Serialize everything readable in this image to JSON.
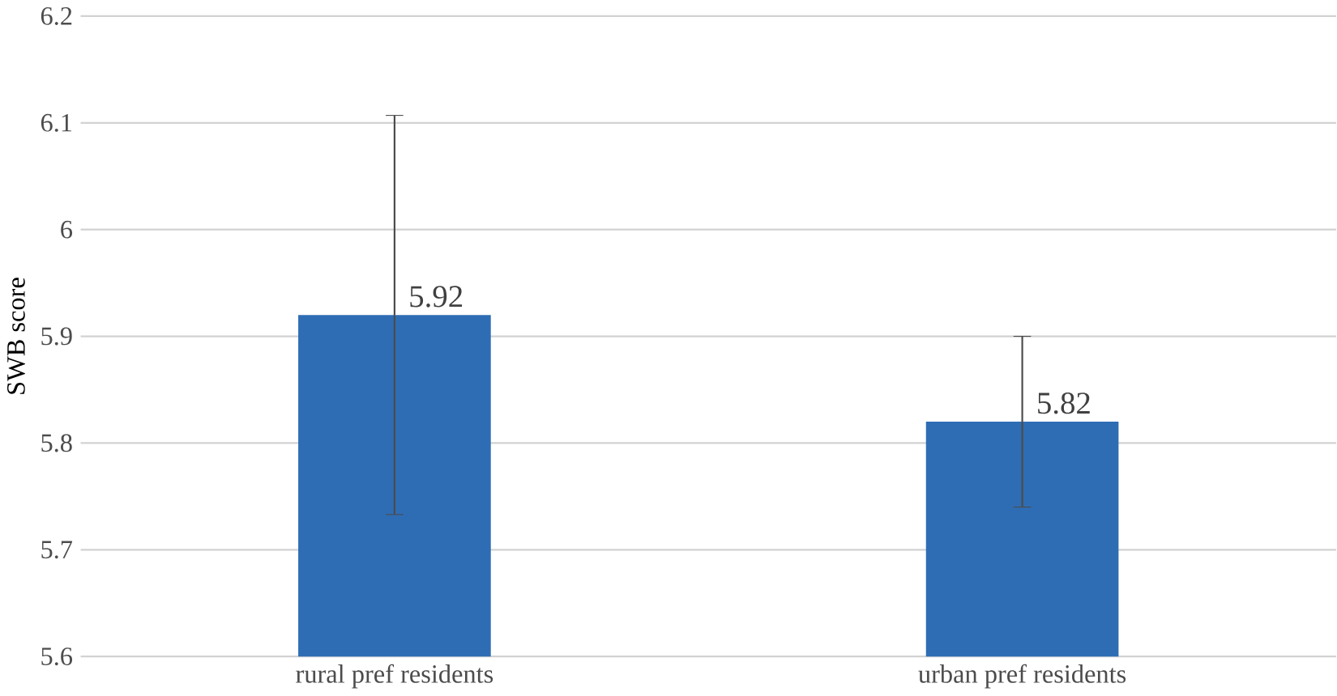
{
  "chart_data": {
    "type": "bar",
    "ylabel": "SWB score",
    "categories": [
      "rural pref residents",
      "urban pref residents"
    ],
    "values": [
      5.92,
      5.82
    ],
    "value_labels": [
      "5.92",
      "5.82"
    ],
    "errors": [
      0.187,
      0.08
    ],
    "color": "#2e6db4",
    "ylim": [
      5.6,
      6.2
    ],
    "yticks": [
      5.6,
      5.7,
      5.8,
      5.9,
      6,
      6.1,
      6.2
    ],
    "grid": "y"
  }
}
